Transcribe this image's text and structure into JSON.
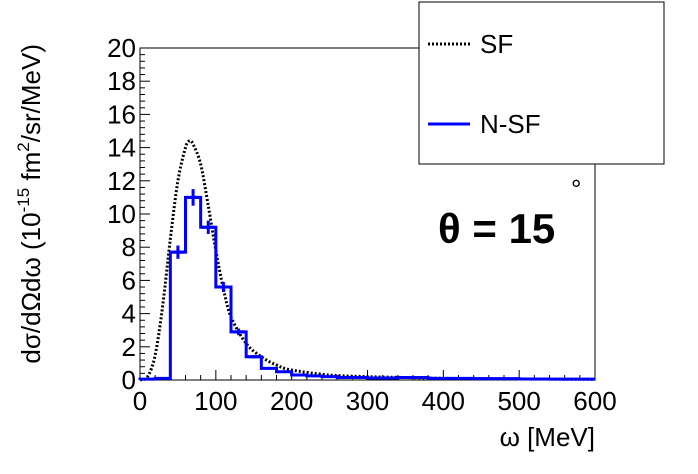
{
  "chart_data": {
    "type": "line",
    "xlabel": "ω [MeV]",
    "ylabel_main": "dσ/dΩdω (10",
    "ylabel_exp1": "-15",
    "ylabel_mid": " fm",
    "ylabel_exp2": "2",
    "ylabel_end": "/sr/MeV)",
    "annotation": "θ = 15",
    "annotation_degree": "°",
    "xlim": [
      0,
      600
    ],
    "ylim": [
      0,
      20
    ],
    "xticks": [
      0,
      100,
      200,
      300,
      400,
      500,
      600
    ],
    "yticks": [
      0,
      2,
      4,
      6,
      8,
      10,
      12,
      14,
      16,
      18,
      20
    ],
    "grid": false,
    "legend_position": "top-right",
    "series": [
      {
        "name": "SF",
        "style": "dotted",
        "color": "#000000",
        "x": [
          0,
          10,
          20,
          30,
          40,
          50,
          60,
          65,
          70,
          80,
          90,
          100,
          110,
          120,
          140,
          160,
          180,
          200,
          250,
          300,
          350,
          400,
          450,
          500,
          550,
          600
        ],
        "y": [
          0,
          0.2,
          1.5,
          4.5,
          8.5,
          12.0,
          14.0,
          14.4,
          14.2,
          13.0,
          10.5,
          7.8,
          5.5,
          3.8,
          2.2,
          1.4,
          0.9,
          0.6,
          0.3,
          0.2,
          0.15,
          0.1,
          0.08,
          0.06,
          0.05,
          0.04
        ]
      },
      {
        "name": "N-SF",
        "style": "histogram",
        "color": "#0000ff",
        "bin_edges": [
          0,
          20,
          40,
          60,
          80,
          100,
          120,
          140,
          160,
          180,
          200,
          220,
          240,
          260,
          300,
          340,
          380,
          440,
          500,
          540,
          600
        ],
        "values": [
          0.05,
          0.1,
          7.7,
          11.0,
          9.2,
          5.6,
          2.9,
          1.4,
          0.7,
          0.5,
          0.3,
          0.25,
          0.2,
          0.15,
          0.12,
          0.15,
          0.1,
          0.08,
          0.06,
          0.05
        ],
        "errors": [
          0,
          0,
          0.4,
          0.5,
          0.4,
          0.3,
          0.2,
          0.1,
          0,
          0,
          0,
          0,
          0,
          0,
          0,
          0,
          0,
          0,
          0,
          0
        ]
      }
    ]
  }
}
